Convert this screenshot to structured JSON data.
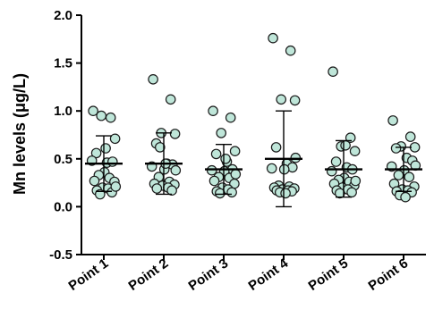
{
  "chart_data": {
    "type": "scatter",
    "ylabel": "Mn levels (μg/L)",
    "ylim": [
      -0.5,
      2.0
    ],
    "yticks": [
      {
        "value": -0.5,
        "label": "-0.5"
      },
      {
        "value": 0.0,
        "label": "0.0"
      },
      {
        "value": 0.5,
        "label": "0.5"
      },
      {
        "value": 1.0,
        "label": "1.0"
      },
      {
        "value": 1.5,
        "label": "1.5"
      },
      {
        "value": 2.0,
        "label": "2.0"
      }
    ],
    "categories": [
      "Point 1",
      "Point 2",
      "Point 3",
      "Point 4",
      "Point 5",
      "Point 6"
    ],
    "series": [
      {
        "category": "Point 1",
        "mean": 0.45,
        "sd_low": 0.16,
        "sd_high": 0.74,
        "values": [
          1.0,
          0.93,
          0.95,
          0.71,
          0.56,
          0.46,
          0.47,
          0.48,
          0.36,
          0.33,
          0.3,
          0.27,
          0.26,
          0.2,
          0.19,
          0.17,
          0.15,
          0.13,
          0.61,
          0.21
        ]
      },
      {
        "category": "Point 2",
        "mean": 0.45,
        "sd_low": 0.13,
        "sd_high": 0.77,
        "values": [
          1.33,
          1.12,
          0.77,
          0.76,
          0.66,
          0.45,
          0.44,
          0.42,
          0.39,
          0.31,
          0.26,
          0.24,
          0.23,
          0.22,
          0.2,
          0.19,
          0.17,
          0.62,
          0.45,
          0.38
        ]
      },
      {
        "category": "Point 3",
        "mean": 0.39,
        "sd_low": 0.13,
        "sd_high": 0.65,
        "values": [
          1.0,
          0.93,
          0.77,
          0.58,
          0.55,
          0.47,
          0.39,
          0.38,
          0.37,
          0.31,
          0.3,
          0.27,
          0.24,
          0.2,
          0.18,
          0.16,
          0.15,
          0.14,
          0.5,
          0.34
        ]
      },
      {
        "category": "Point 4",
        "mean": 0.5,
        "sd_low": 0.0,
        "sd_high": 1.0,
        "values": [
          1.76,
          1.63,
          1.12,
          1.11,
          0.62,
          0.45,
          0.41,
          0.4,
          0.39,
          0.22,
          0.21,
          0.2,
          0.19,
          0.18,
          0.17,
          0.17,
          0.16,
          0.15,
          0.14,
          0.51
        ]
      },
      {
        "category": "Point 5",
        "mean": 0.39,
        "sd_low": 0.1,
        "sd_high": 0.69,
        "values": [
          1.41,
          0.72,
          0.63,
          0.58,
          0.47,
          0.41,
          0.39,
          0.37,
          0.3,
          0.28,
          0.26,
          0.24,
          0.22,
          0.2,
          0.18,
          0.17,
          0.15,
          0.14,
          0.64,
          0.27
        ]
      },
      {
        "category": "Point 6",
        "mean": 0.39,
        "sd_low": 0.16,
        "sd_high": 0.62,
        "values": [
          0.9,
          0.73,
          0.63,
          0.62,
          0.61,
          0.51,
          0.48,
          0.42,
          0.38,
          0.33,
          0.31,
          0.24,
          0.21,
          0.18,
          0.17,
          0.16,
          0.15,
          0.12,
          0.1,
          0.43
        ]
      }
    ],
    "colors": {
      "point_fill": "#bfe6d9",
      "point_stroke": "#1a1a1a",
      "mean_line": "#000000",
      "error_bar": "#000000",
      "axis": "#000000"
    }
  }
}
